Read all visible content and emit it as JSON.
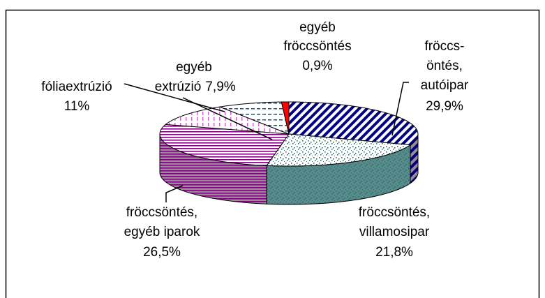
{
  "chart_data": {
    "type": "pie3d",
    "categories": [
      "fröccs-\nöntés,\nautóipar",
      "fröccsöntés,\nvillamosipar",
      "fröccsöntés,\negyéb iparok",
      "fóliaextrúzió",
      "egyéb\nextrúzió",
      "egyéb\nfröccsöntés"
    ],
    "values": [
      29.9,
      21.8,
      26.5,
      11,
      7.9,
      0.9
    ],
    "value_labels": [
      "29,9%",
      "21,8%",
      "26,5%",
      "11%",
      "7,9%",
      "0,9%"
    ],
    "colors": [
      "#000080",
      "#008080",
      "#800080",
      "#cc66cc",
      "#1f4e79",
      "#ff0000"
    ]
  }
}
